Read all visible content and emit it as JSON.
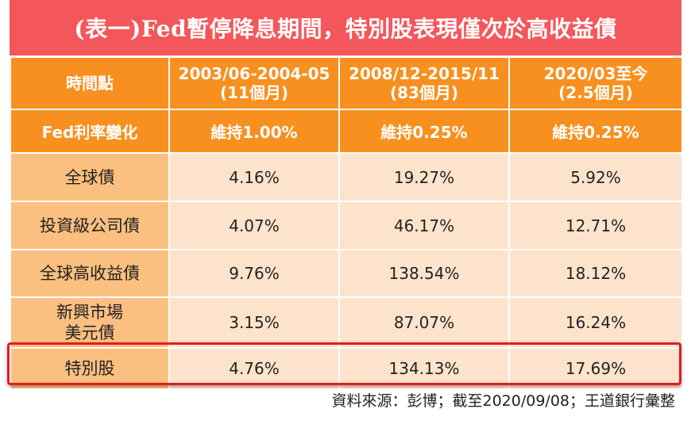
{
  "title": "(表一)Fed暫停降息期間，特別股表現僅次於高收益債",
  "header": {
    "col0": "時間點",
    "periods": [
      {
        "range": "2003/06-2004-05",
        "duration": "(11個月)"
      },
      {
        "range": "2008/12-2015/11",
        "duration": "(83個月)"
      },
      {
        "range": "2020/03至今",
        "duration": "(2.5個月)"
      }
    ]
  },
  "rate_row": {
    "label": "Fed利率變化",
    "values": [
      "維持1.00%",
      "維持0.25%",
      "維持0.25%"
    ]
  },
  "rows": [
    {
      "label_line1": "全球債",
      "label_line2": "",
      "values": [
        "4.16%",
        "19.27%",
        "5.92%"
      ]
    },
    {
      "label_line1": "投資級公司債",
      "label_line2": "",
      "values": [
        "4.07%",
        "46.17%",
        "12.71%"
      ]
    },
    {
      "label_line1": "全球高收益債",
      "label_line2": "",
      "values": [
        "9.76%",
        "138.54%",
        "18.12%"
      ]
    },
    {
      "label_line1": "新興市場",
      "label_line2": "美元債",
      "values": [
        "3.15%",
        "87.07%",
        "16.24%"
      ]
    },
    {
      "label_line1": "特別股",
      "label_line2": "",
      "values": [
        "4.76%",
        "134.13%",
        "17.69%"
      ]
    }
  ],
  "source": "資料來源：彭博；截至2020/09/08；王道銀行彙整",
  "colors": {
    "title_bg": "#f4575b",
    "header_bg": "#f7901e",
    "label_bg": "#fbbf80",
    "cell_bg": "#fde3cc",
    "highlight_border": "#e8191f"
  }
}
